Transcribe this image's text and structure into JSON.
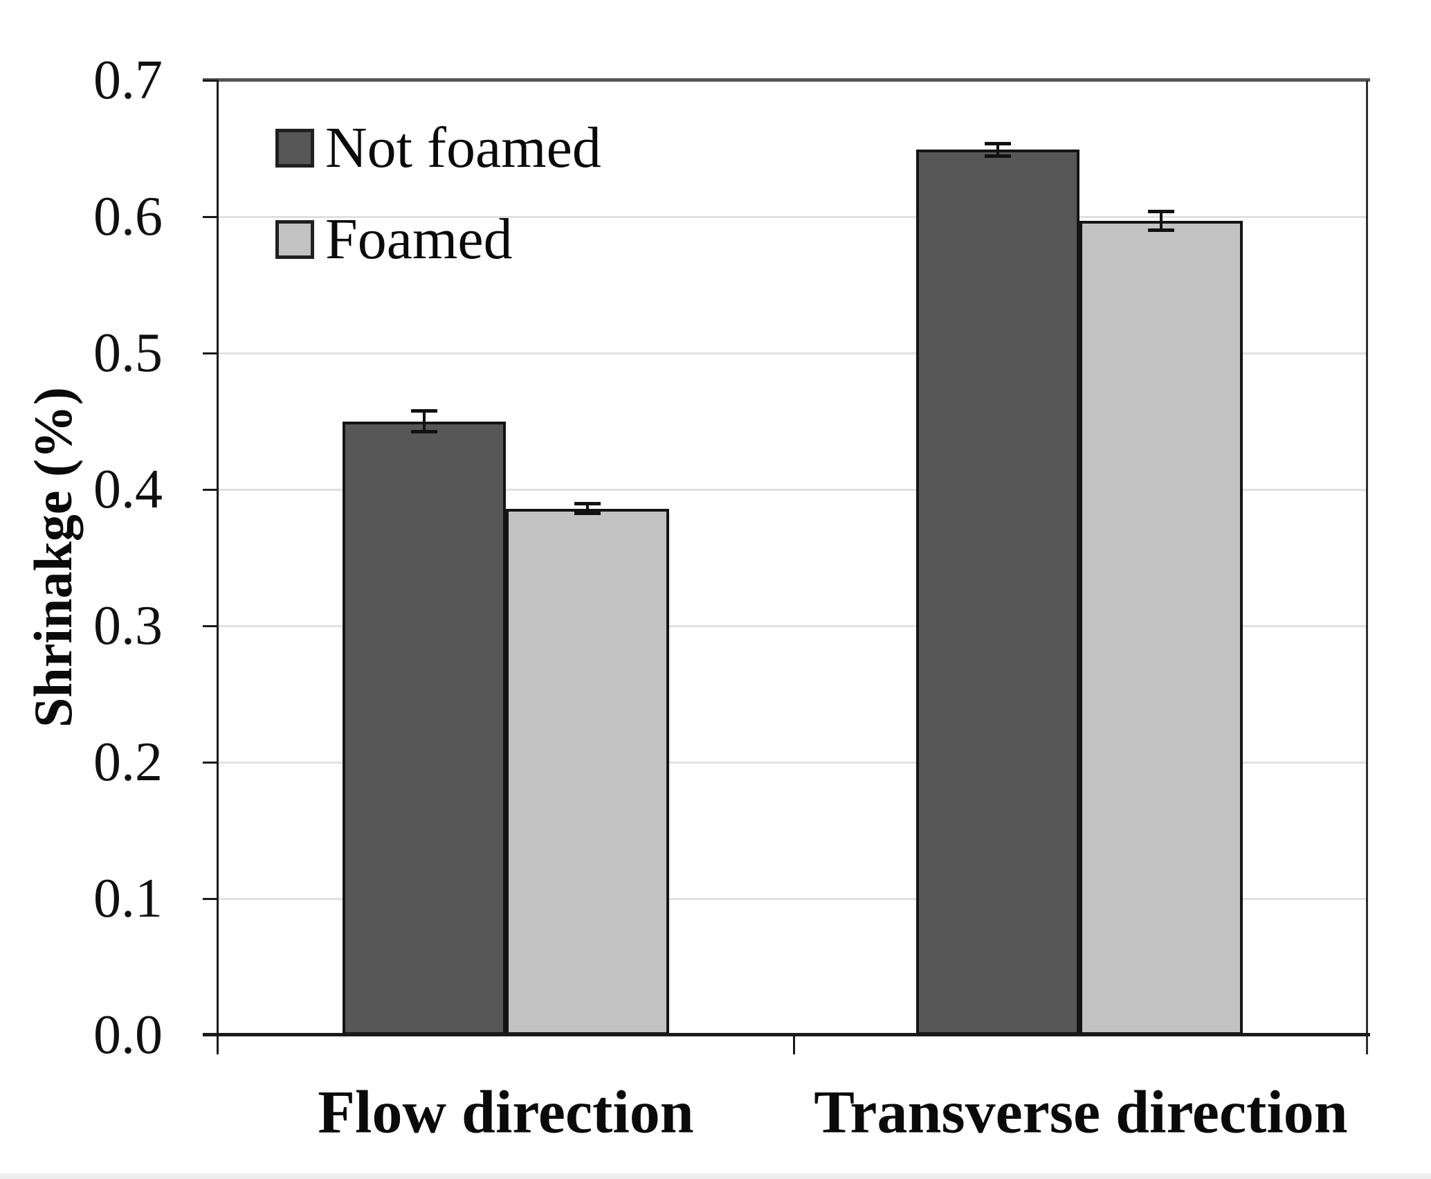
{
  "figure": {
    "background": "#ffffff"
  },
  "chart_data": {
    "type": "bar",
    "title": "",
    "categories": [
      "Flow direction",
      "Transverse direction"
    ],
    "series": [
      {
        "name": "Not foamed",
        "color": "#575757",
        "border_color": "#141414",
        "values": [
          0.45,
          0.649
        ],
        "errors": [
          0.008,
          0.005
        ]
      },
      {
        "name": "Foamed",
        "color": "#c2c2c2",
        "border_color": "#141414",
        "values": [
          0.386,
          0.597
        ],
        "errors": [
          0.004,
          0.007
        ]
      }
    ],
    "xlabel": "",
    "ylabel": "Shrinakge (%)",
    "ylim": [
      0.0,
      0.7
    ],
    "yticks": [
      0.0,
      0.1,
      0.2,
      0.3,
      0.4,
      0.5,
      0.6,
      0.7
    ],
    "ytick_decimals": 1,
    "grid": "horizontal",
    "gridline_color": "#e0e0e0",
    "legend_position": "top-left-inside",
    "error_bar_color": "#111111",
    "axis_color": "#1a1a1a"
  }
}
